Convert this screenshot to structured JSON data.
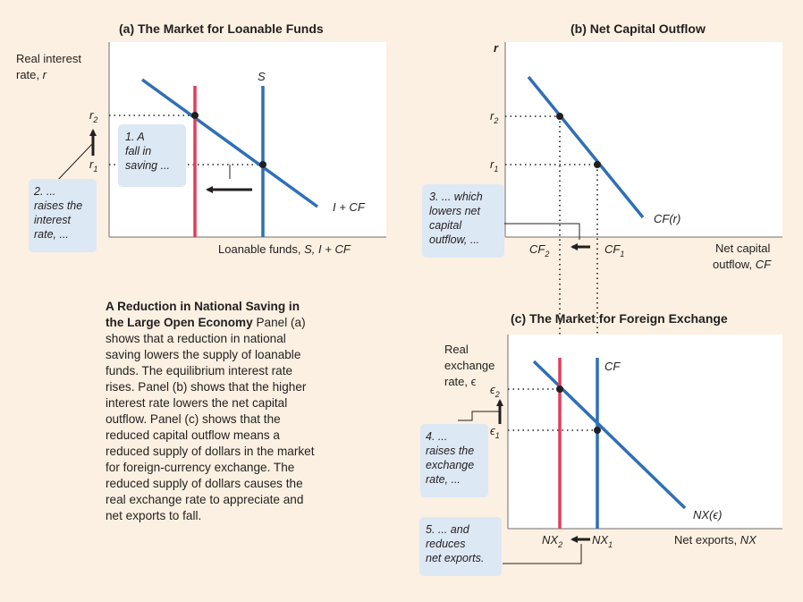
{
  "colors": {
    "background": "#fbf0e1",
    "panel": "#ffffff",
    "axis": "#9d9b9b",
    "blue": "#2f6fb6",
    "red": "#e23d5a",
    "note_box": "#dde8f5",
    "text": "#231f20"
  },
  "panel_a": {
    "title": "(a) The Market for Loanable Funds",
    "ylabel_1": "Real interest",
    "ylabel_2": "rate, ",
    "ylabel_var": "r",
    "xlabel": "Loanable funds, ",
    "xlabel_var": "S, I + CF",
    "supply_label": "S",
    "demand_label": "I + CF",
    "r2": "r",
    "r2_sub": "2",
    "r1": "r",
    "r1_sub": "1",
    "note1": [
      "1. A",
      "fall in",
      "saving ..."
    ],
    "note2": [
      "2. ...",
      "raises the",
      "interest",
      "rate, ..."
    ]
  },
  "panel_b": {
    "title": "(b) Net Capital Outflow",
    "ylabel": "r",
    "r2": "r",
    "r2_sub": "2",
    "r1": "r",
    "r1_sub": "1",
    "curve_label": "CF(r)",
    "cf2": "CF",
    "cf2_sub": "2",
    "cf1": "CF",
    "cf1_sub": "1",
    "xlabel_1": "Net capital",
    "xlabel_2": "outflow, ",
    "xlabel_var": "CF",
    "note3": [
      "3. ... which",
      "lowers net",
      "capital",
      "outflow, ..."
    ]
  },
  "panel_c": {
    "title": "(c) The Market for Foreign Exchange",
    "ylabel_1": "Real",
    "ylabel_2": "exchange",
    "ylabel_3": "rate, ϵ",
    "e2": "ϵ",
    "e2_sub": "2",
    "e1": "ϵ",
    "e1_sub": "1",
    "cf_label": "CF",
    "curve_label": "NX(ϵ)",
    "nx2": "NX",
    "nx2_sub": "2",
    "nx1": "NX",
    "nx1_sub": "1",
    "xlabel": "Net exports, ",
    "xlabel_var": "NX",
    "note4": [
      "4. ...",
      "raises the",
      "exchange",
      "rate, ..."
    ],
    "note5": [
      "5. ... and",
      "reduces",
      "net exports."
    ]
  },
  "caption": {
    "heading": "A Reduction in National Saving in the Large Open Economy",
    "body": "Panel (a) shows that a reduction in national saving lowers the supply of loanable funds. The equilibrium interest rate rises. Panel (b) shows that the higher interest rate lowers the net capital outflow. Panel (c) shows that the reduced capital outflow means a reduced supply of dollars in the market for foreign-currency exchange. The reduced supply of dollars causes the real exchange rate to appreciate and net exports to fall."
  }
}
